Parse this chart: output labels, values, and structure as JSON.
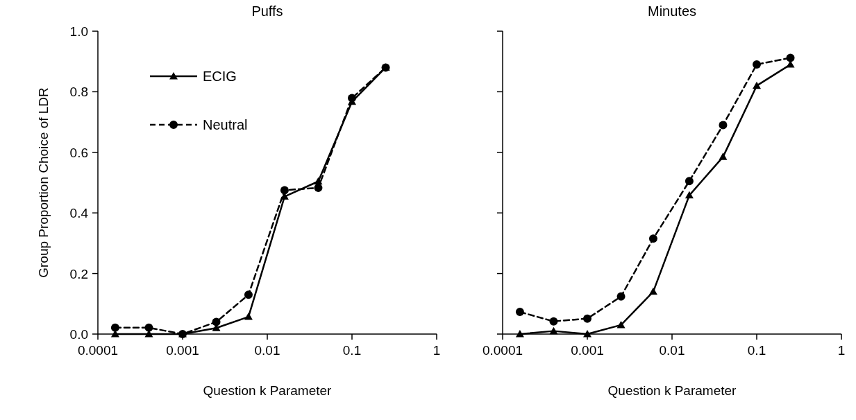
{
  "chart_data": [
    {
      "type": "line",
      "title": "Puffs",
      "xlabel": "Question k Parameter",
      "ylabel": "Group Proportion Choice of LDR",
      "log": "x",
      "xlim": [
        0.0001,
        1
      ],
      "xticks": [
        0.0001,
        0.001,
        0.01,
        0.1,
        1
      ],
      "ylim": [
        0,
        1
      ],
      "yticks": [
        {
          "value": 0,
          "label": "0.0"
        },
        {
          "value": 0.2,
          "label": "0.2"
        },
        {
          "value": 0.4,
          "label": "0.4"
        },
        {
          "value": 0.6,
          "label": "0.6"
        },
        {
          "value": 0.8,
          "label": "0.8"
        },
        {
          "value": 1,
          "label": "1.0"
        }
      ],
      "legend": "top left",
      "grid": false,
      "x": [
        0.00016,
        0.0004,
        0.001,
        0.0025,
        0.006,
        0.016,
        0.04,
        0.1,
        0.25
      ],
      "series": [
        {
          "name": "ECIG",
          "color": "#000000",
          "marker": "triangle",
          "line_style": "solid",
          "values": [
            0,
            0,
            0,
            0.02,
            0.057,
            0.454,
            0.504,
            0.767,
            0.88
          ]
        },
        {
          "name": "Neutral",
          "color": "#000000",
          "marker": "circle",
          "line_style": "dashed",
          "values": [
            0.021,
            0.021,
            0,
            0.04,
            0.13,
            0.475,
            0.483,
            0.779,
            0.88
          ]
        }
      ]
    },
    {
      "type": "line",
      "title": "Minutes",
      "xlabel": "Question k Parameter",
      "log": "x",
      "xlim": [
        0.0001,
        1
      ],
      "xticks": [
        0.0001,
        0.001,
        0.01,
        0.1,
        1
      ],
      "ylim": [
        0,
        1
      ],
      "yticks": [
        {
          "value": 0,
          "label": null
        },
        {
          "value": 0.2,
          "label": null
        },
        {
          "value": 0.4,
          "label": null
        },
        {
          "value": 0.6,
          "label": null
        },
        {
          "value": 0.8,
          "label": null
        },
        {
          "value": 1,
          "label": null
        }
      ],
      "tick_labels": "x",
      "legend": false,
      "grid": false,
      "x": [
        0.00016,
        0.0004,
        0.001,
        0.0025,
        0.006,
        0.016,
        0.04,
        0.1,
        0.25
      ],
      "series": [
        {
          "color": "#000000",
          "marker": "triangle",
          "line_style": "solid",
          "values": [
            0,
            0.01,
            0,
            0.03,
            0.14,
            0.458,
            0.585,
            0.82,
            0.89
          ]
        },
        {
          "color": "#000000",
          "marker": "circle",
          "line_style": "dashed",
          "values": [
            0.073,
            0.042,
            0.051,
            0.124,
            0.315,
            0.505,
            0.69,
            0.89,
            0.912
          ]
        }
      ]
    }
  ]
}
